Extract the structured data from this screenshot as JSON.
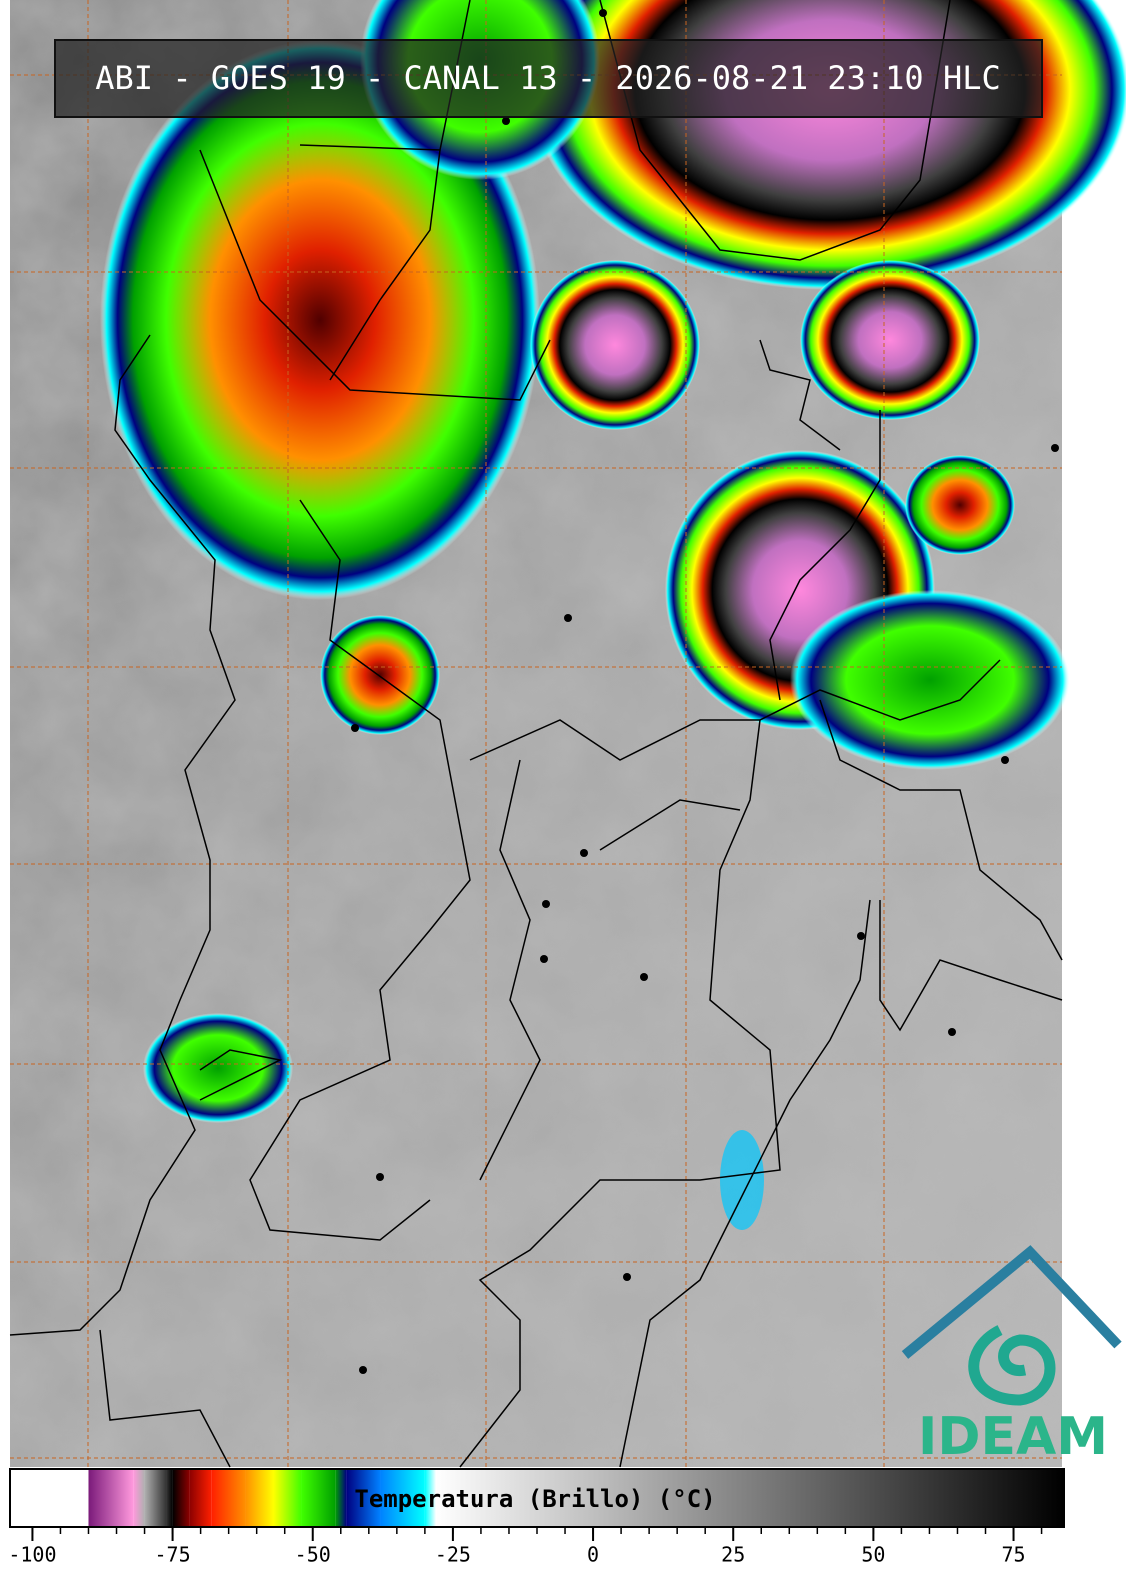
{
  "header": {
    "title": "ABI - GOES 19 - CANAL 13 - 2026-08-21 23:10 HLC"
  },
  "logo": {
    "text": "IDEAM"
  },
  "colorbar": {
    "label": "Temperatura (Brillo) (°C)",
    "xlim": [
      -104,
      84
    ],
    "xticks": [
      -100,
      -75,
      -50,
      -25,
      0,
      25,
      50,
      75
    ],
    "xminorticks": [
      -100,
      -95,
      -90,
      -85,
      -80,
      -75,
      -70,
      -65,
      -60,
      -55,
      -50,
      -45,
      -40,
      -35,
      -30,
      -25,
      -20,
      -15,
      -10,
      -5,
      0,
      5,
      10,
      15,
      20,
      25,
      30,
      35,
      40,
      45,
      50,
      55,
      60,
      65,
      70,
      75,
      80
    ],
    "stops": [
      {
        "value": -104,
        "color": "#ffffff"
      },
      {
        "value": -90,
        "color": "#ffffff"
      },
      {
        "value": -90,
        "color": "#7a1a7a"
      },
      {
        "value": -82,
        "color": "#ff99dd"
      },
      {
        "value": -80,
        "color": "#b0b0b0"
      },
      {
        "value": -76,
        "color": "#303030"
      },
      {
        "value": -75,
        "color": "#000000"
      },
      {
        "value": -72,
        "color": "#8b0000"
      },
      {
        "value": -68,
        "color": "#ff2000"
      },
      {
        "value": -62,
        "color": "#ff9000"
      },
      {
        "value": -57,
        "color": "#ffff00"
      },
      {
        "value": -52,
        "color": "#40ff00"
      },
      {
        "value": -46,
        "color": "#00a000"
      },
      {
        "value": -44,
        "color": "#000080"
      },
      {
        "value": -38,
        "color": "#0080ff"
      },
      {
        "value": -30,
        "color": "#00ffff"
      },
      {
        "value": -28,
        "color": "#ffffff"
      },
      {
        "value": 84,
        "color": "#000000"
      }
    ]
  }
}
